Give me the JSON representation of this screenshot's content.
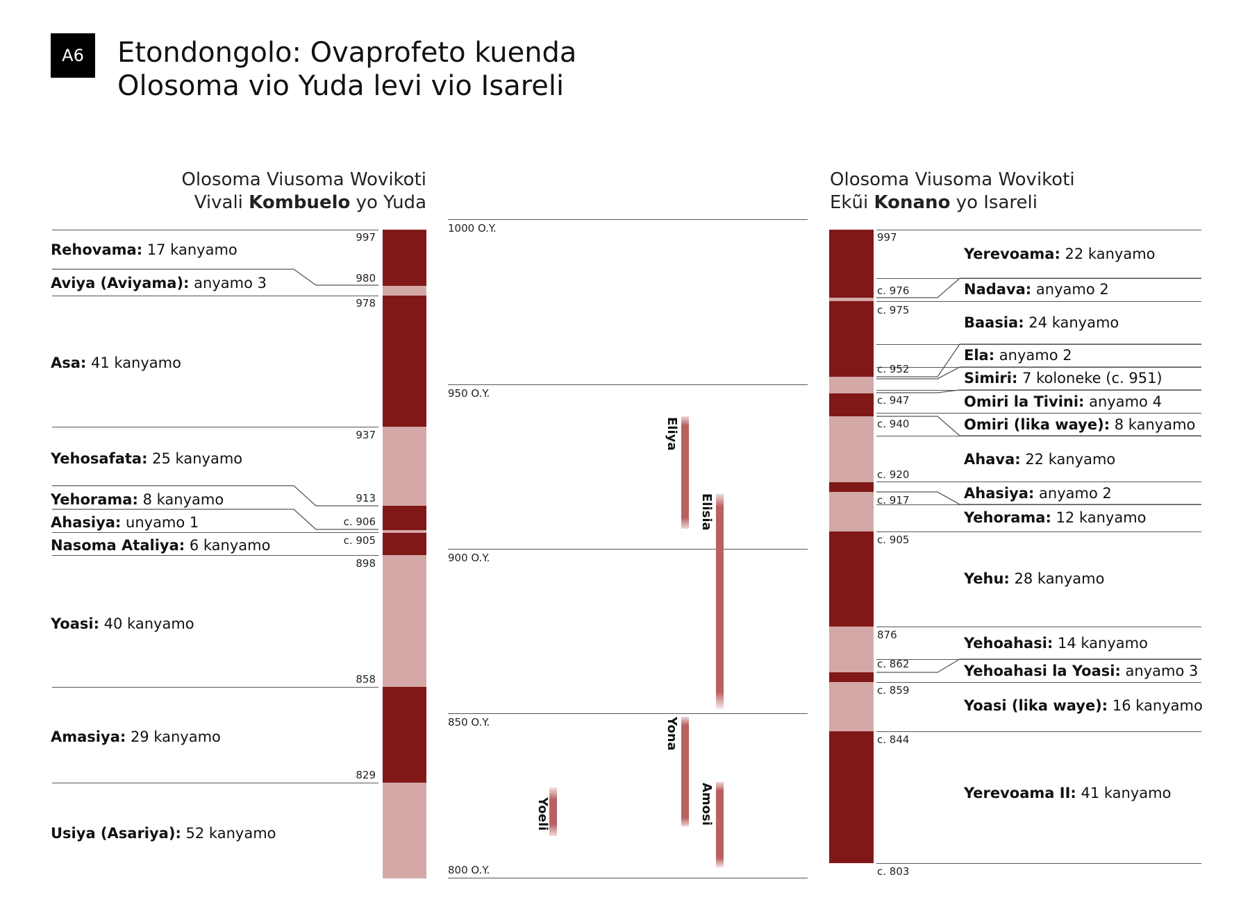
{
  "badge": "A6",
  "title": {
    "line1": "Etondongolo: Ovaprofeto kuenda",
    "line2": "Olosoma vio Yuda levi vio Isareli"
  },
  "judah": {
    "header": {
      "line1": "Olosoma Viusoma Wovikoti",
      "line2_pre": "Vivali ",
      "line2_bold": "Kombuelo",
      "line2_post": " yo Yuda"
    },
    "kings": [
      {
        "name": "Rehovama:",
        "reign": " 17 kanyamo"
      },
      {
        "name": "Aviya (Aviyama):",
        "reign": " anyamo 3"
      },
      {
        "name": "Asa:",
        "reign": " 41 kanyamo"
      },
      {
        "name": "Yehosafata:",
        "reign": " 25 kanyamo"
      },
      {
        "name": "Yehorama:",
        "reign": " 8 kanyamo"
      },
      {
        "name": "Ahasiya:",
        "reign": " unyamo 1"
      },
      {
        "name": "Nasoma Ataliya:",
        "reign": " 6 kanyamo"
      },
      {
        "name": "Yoasi:",
        "reign": " 40 kanyamo"
      },
      {
        "name": "Amasiya:",
        "reign": " 29 kanyamo"
      },
      {
        "name": "Usiya (Asariya):",
        "reign": " 52 kanyamo"
      }
    ],
    "years": [
      "997",
      "980",
      "978",
      "937",
      "913",
      "c. 906",
      "c. 905",
      "898",
      "858",
      "829"
    ]
  },
  "timeline": {
    "ticks": [
      "1000 O.Y.",
      "950 O.Y.",
      "900 O.Y.",
      "850 O.Y.",
      "800 O.Y."
    ],
    "prophets": [
      "Eliya",
      "Elisia",
      "Yona",
      "Amosi",
      "Yoeli"
    ]
  },
  "israel": {
    "header": {
      "line1": "Olosoma Viusoma Wovikoti",
      "line2_pre": "Ekũi ",
      "line2_bold": "Konano",
      "line2_post": " yo Isareli"
    },
    "kings": [
      {
        "name": "Yerevoama:",
        "reign": " 22 kanyamo"
      },
      {
        "name": "Nadava:",
        "reign": " anyamo 2"
      },
      {
        "name": "Baasia:",
        "reign": " 24 kanyamo"
      },
      {
        "name": "Ela:",
        "reign": " anyamo 2"
      },
      {
        "name": "Simiri:",
        "reign": " 7 koloneke (c. 951)"
      },
      {
        "name": "Omiri la Tivini:",
        "reign": " anyamo 4"
      },
      {
        "name": "Omiri (lika waye):",
        "reign": " 8 kanyamo"
      },
      {
        "name": "Ahava:",
        "reign": " 22 kanyamo"
      },
      {
        "name": "Ahasiya:",
        "reign": " anyamo 2"
      },
      {
        "name": "Yehorama:",
        "reign": " 12 kanyamo"
      },
      {
        "name": "Yehu:",
        "reign": " 28 kanyamo"
      },
      {
        "name": "Yehoahasi:",
        "reign": " 14 kanyamo"
      },
      {
        "name": "Yehoahasi la Yoasi:",
        "reign": " anyamo 3"
      },
      {
        "name": "Yoasi (lika waye):",
        "reign": " 16 kanyamo"
      },
      {
        "name": "Yerevoama II:",
        "reign": " 41 kanyamo"
      }
    ],
    "years": [
      "997",
      "c. 976",
      "c. 975",
      "c. 952",
      "c. 947",
      "c. 940",
      "c. 920",
      "c. 917",
      "c. 905",
      "876",
      "c. 862",
      "c. 859",
      "c. 844",
      "c. 803"
    ]
  },
  "colors": {
    "dark": "#801818",
    "light": "#d4a8a7",
    "prophet": "#b96060"
  }
}
